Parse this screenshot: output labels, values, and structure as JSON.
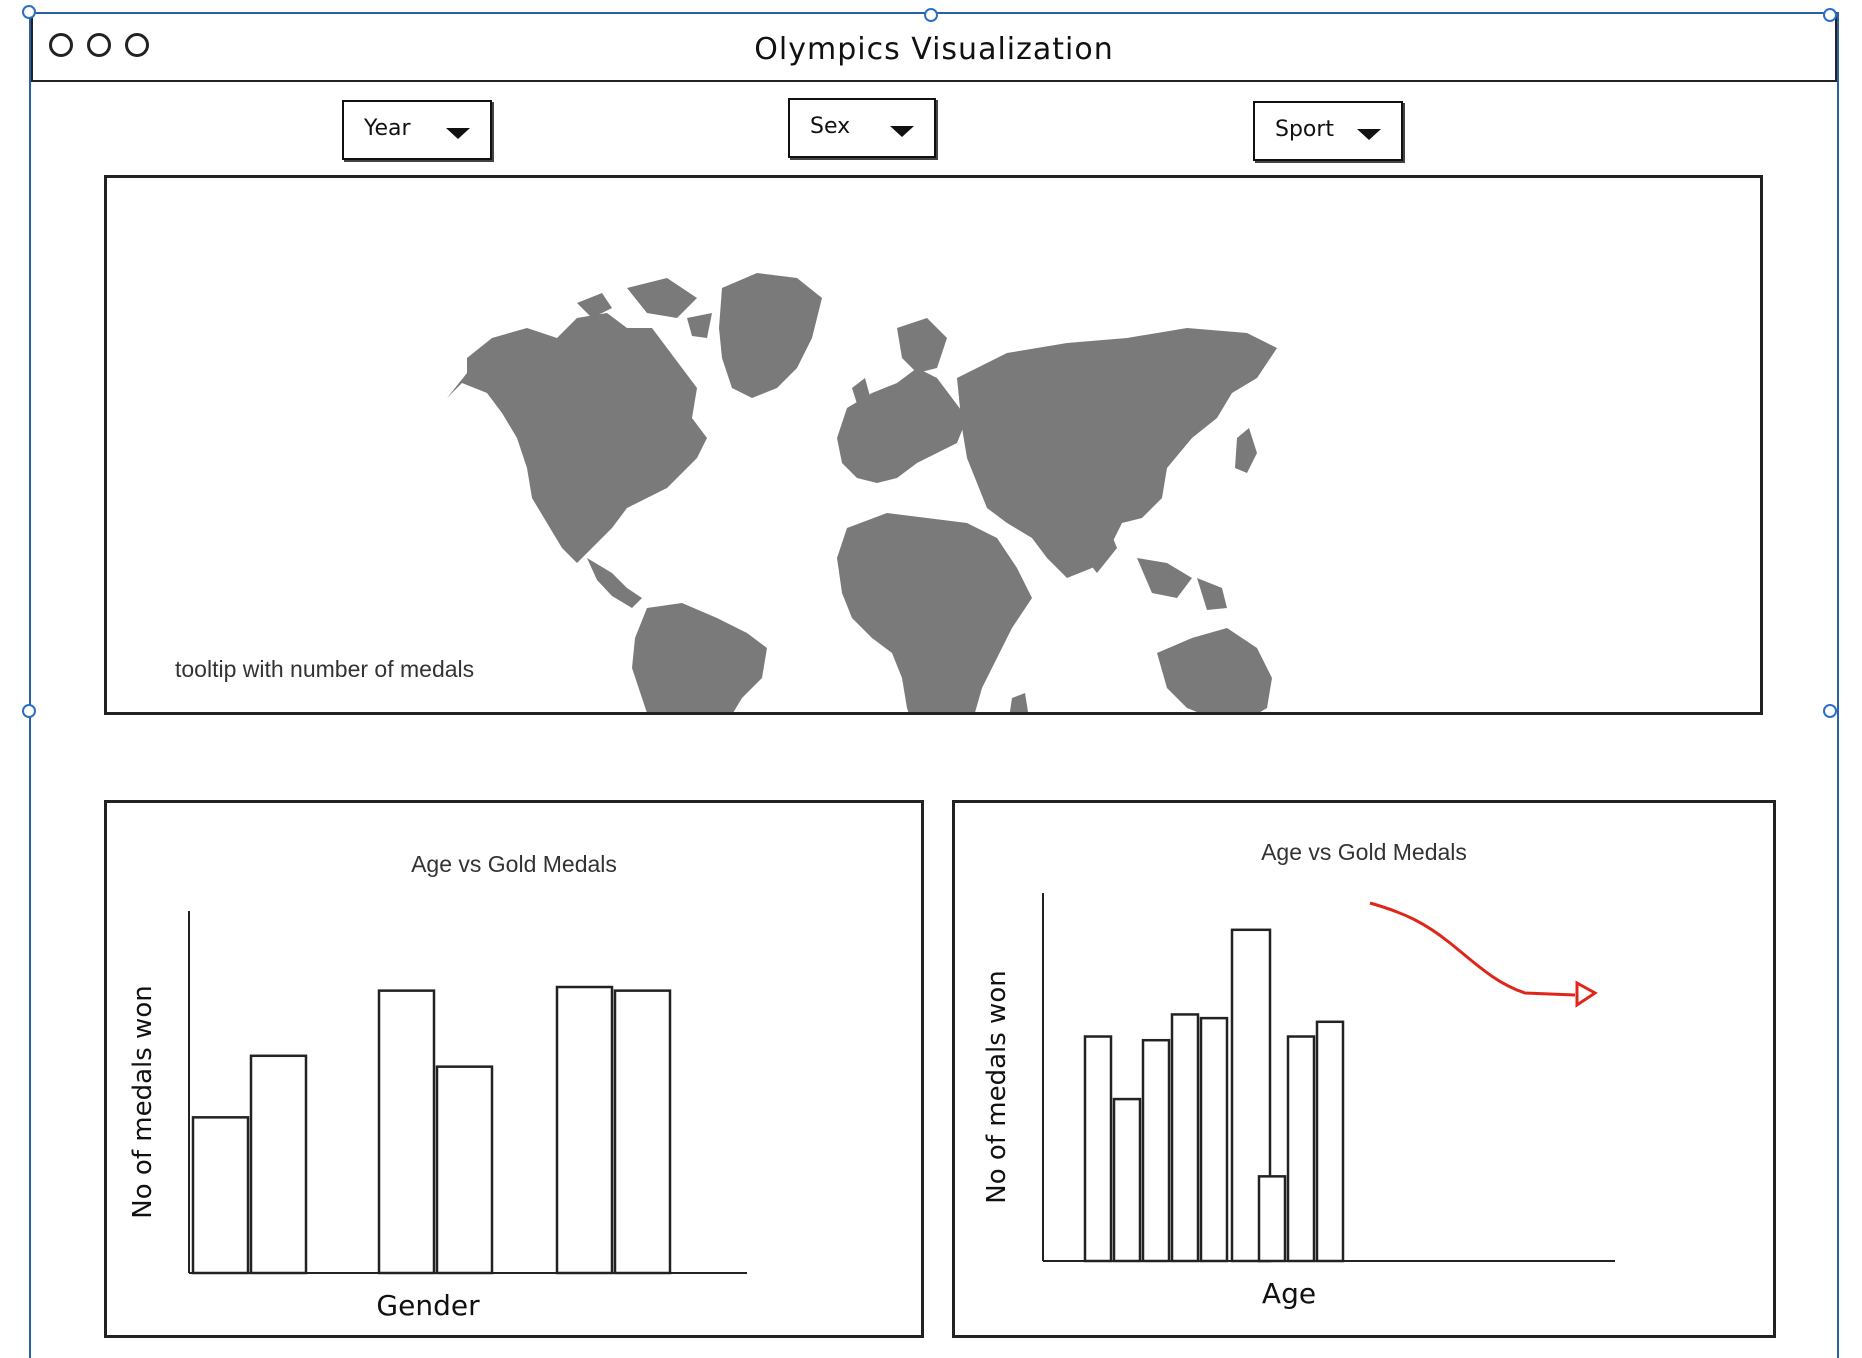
{
  "window": {
    "title": "Olympics Visualization"
  },
  "filters": [
    {
      "label": "Year"
    },
    {
      "label": "Sex"
    },
    {
      "label": "Sport"
    }
  ],
  "map": {
    "note": "tooltip with number of medals",
    "fill_color": "#7a7a7a"
  },
  "charts": {
    "left": {
      "title": "Age vs Gold Medals",
      "xlabel": "Gender",
      "ylabel": "No of medals won"
    },
    "right": {
      "title": "Age vs Gold Medals",
      "xlabel": "Age",
      "ylabel": "No of medals won",
      "arrow_color": "#e0261b"
    }
  },
  "chart_data": [
    {
      "type": "bar",
      "title": "Age vs Gold Medals",
      "xlabel": "Gender",
      "ylabel": "No of medals won",
      "groups": [
        {
          "values": [
            43,
            60
          ]
        },
        {
          "values": [
            78,
            57
          ]
        },
        {
          "values": [
            79,
            78
          ]
        }
      ],
      "ylim": [
        0,
        100
      ]
    },
    {
      "type": "bar",
      "title": "Age vs Gold Medals",
      "xlabel": "Age",
      "ylabel": "No of medals won",
      "values": [
        61,
        44,
        60,
        67,
        66,
        90,
        23,
        61,
        65
      ],
      "ylim": [
        0,
        100
      ]
    }
  ]
}
